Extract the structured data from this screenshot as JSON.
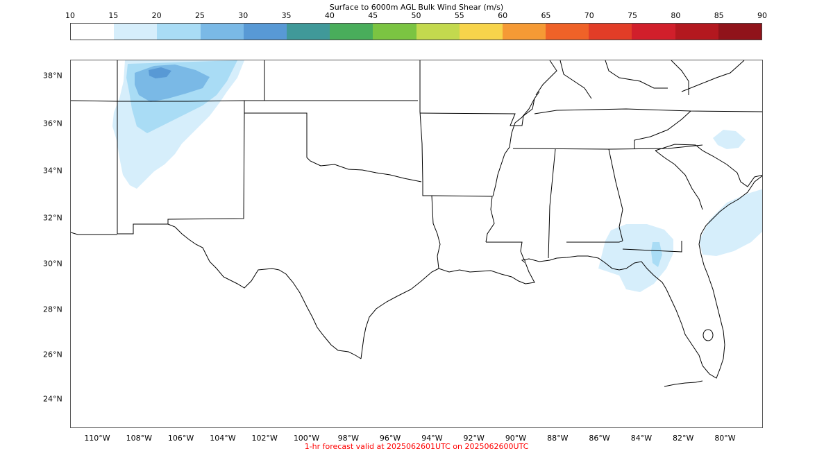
{
  "colorbar": {
    "title": "Surface to 6000m AGL Bulk Wind Shear (m/s)",
    "ticks": [
      "10",
      "15",
      "20",
      "25",
      "30",
      "35",
      "40",
      "45",
      "50",
      "55",
      "60",
      "65",
      "70",
      "75",
      "80",
      "85",
      "90"
    ],
    "colors": [
      "#ffffff",
      "#d6eefb",
      "#a9dcf5",
      "#7ab9e6",
      "#5899d5",
      "#409999",
      "#49ad5b",
      "#7bc442",
      "#c3d94e",
      "#f7d44b",
      "#f59a35",
      "#ef6228",
      "#e23d27",
      "#d11f2b",
      "#b3181f",
      "#90131a"
    ]
  },
  "map": {
    "lat_labels": [
      "38°N",
      "36°N",
      "34°N",
      "32°N",
      "30°N",
      "28°N",
      "26°N",
      "24°N"
    ],
    "lon_labels": [
      "110°W",
      "108°W",
      "106°W",
      "104°W",
      "102°W",
      "100°W",
      "98°W",
      "96°W",
      "94°W",
      "92°W",
      "90°W",
      "88°W",
      "86°W",
      "84°W",
      "82°W",
      "80°W"
    ],
    "shading_colors": {
      "level_15_20": "#d6eefb",
      "level_20_25": "#a9dcf5",
      "level_25_30": "#7ab9e6",
      "level_30_35": "#5899d5"
    }
  },
  "caption": "1-hr forecast valid at 2025062601UTC on 2025062600UTC"
}
